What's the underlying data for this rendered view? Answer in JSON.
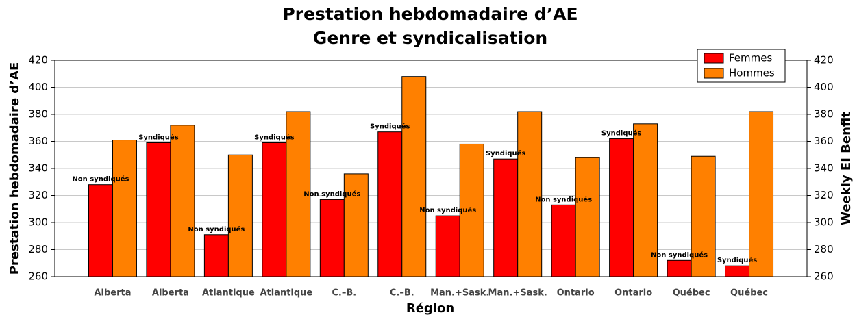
{
  "chart_data": {
    "type": "bar",
    "title": "Prestation hebdomadaire d’AE",
    "subtitle": "Genre et syndicalisation",
    "xlabel": "Région",
    "ylabel": "Prestation hebdomadaire d’AE",
    "y2label": "Weekly EI Benfit",
    "categories": [
      "Alberta",
      "Alberta",
      "Atlantique",
      "Atlantique",
      "C.–B.",
      "C.–B.",
      "Man.+Sask.",
      "Man.+Sask.",
      "Ontario",
      "Ontario",
      "Québec",
      "Québec"
    ],
    "series": [
      {
        "name": "Femmes",
        "color": "#ff0000",
        "values": [
          328,
          359,
          291,
          359,
          317,
          367,
          305,
          347,
          313,
          362,
          272,
          268
        ]
      },
      {
        "name": "Hommes",
        "color": "#ff8000",
        "values": [
          361,
          372,
          350,
          382,
          336,
          408,
          358,
          382,
          348,
          373,
          349,
          382
        ]
      }
    ],
    "annotations": [
      "Non syndiqués",
      "Syndiqués",
      "Non syndiqués",
      "Syndiqués",
      "Non syndiqués",
      "Syndiqués",
      "Non syndiqués",
      "Syndiqués",
      "Non syndiqués",
      "Syndiqués",
      "Non syndiqués",
      "Syndiqués"
    ],
    "ylim": [
      260,
      420
    ],
    "yticks": [
      260,
      280,
      300,
      320,
      340,
      360,
      380,
      400,
      420
    ],
    "y2lim": [
      260,
      420
    ],
    "y2ticks": [
      260,
      280,
      300,
      320,
      340,
      360,
      380,
      400,
      420
    ],
    "grid": true,
    "legend": "upper right"
  }
}
